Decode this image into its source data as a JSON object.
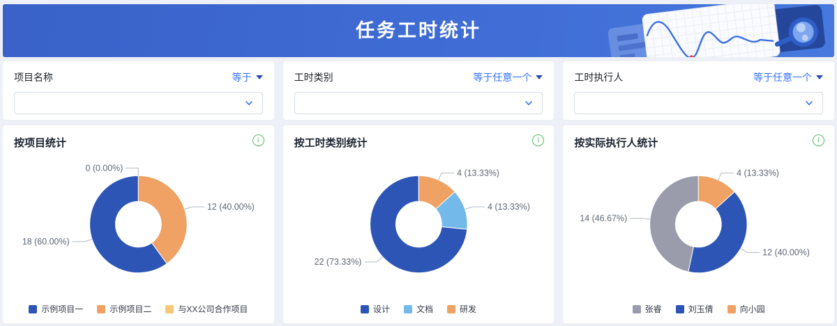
{
  "header": {
    "title": "任务工时统计"
  },
  "filters": [
    {
      "id": "project-name",
      "label": "项目名称",
      "operator": "等于",
      "value": ""
    },
    {
      "id": "hour-category",
      "label": "工时类别",
      "operator": "等于任意一个",
      "value": ""
    },
    {
      "id": "hour-executor",
      "label": "工时执行人",
      "operator": "等于任意一个",
      "value": ""
    }
  ],
  "colors": {
    "accent_blue": "#3370ff",
    "banner_blue": "#3f6cd5",
    "info_green": "#52b961",
    "series_blue": "#2d55b5",
    "series_orange": "#efa263",
    "series_light_yellow": "#f5c878",
    "series_light_blue": "#73b9ea",
    "series_gray": "#9a9cab"
  },
  "chart_data": [
    {
      "type": "pie",
      "title": "按项目统计",
      "donut": true,
      "legend_position": "bottom",
      "slices": [
        {
          "name": "示例项目一",
          "value": 18,
          "label": "18 (60.00%)",
          "color": "#2d55b5"
        },
        {
          "name": "示例项目二",
          "value": 12,
          "label": "12 (40.00%)",
          "color": "#efa263"
        },
        {
          "name": "与XX公司合作项目",
          "value": 0,
          "label": "0 (0.00%)",
          "color": "#f5c878"
        }
      ]
    },
    {
      "type": "pie",
      "title": "按工时类别统计",
      "donut": true,
      "legend_position": "bottom",
      "slices": [
        {
          "name": "设计",
          "value": 22,
          "label": "22 (73.33%)",
          "color": "#2d55b5"
        },
        {
          "name": "文档",
          "value": 4,
          "label": "4 (13.33%)",
          "color": "#73b9ea"
        },
        {
          "name": "研发",
          "value": 4,
          "label": "4 (13.33%)",
          "color": "#efa263"
        }
      ]
    },
    {
      "type": "pie",
      "title": "按实际执行人统计",
      "donut": true,
      "legend_position": "bottom",
      "slices": [
        {
          "name": "张睿",
          "value": 14,
          "label": "14 (46.67%)",
          "color": "#9a9cab"
        },
        {
          "name": "刘玉倩",
          "value": 12,
          "label": "12 (40.00%)",
          "color": "#2d55b5"
        },
        {
          "name": "向小园",
          "value": 4,
          "label": "4 (13.33%)",
          "color": "#efa263"
        }
      ]
    }
  ],
  "icons": {
    "info": "i",
    "chevron_down": "chevron-down",
    "caret_down": "caret-down"
  }
}
